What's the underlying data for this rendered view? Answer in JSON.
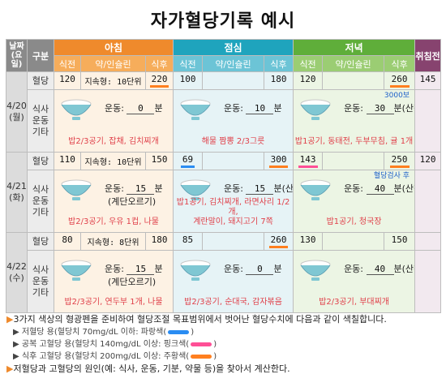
{
  "title": "자가혈당기록 예시",
  "header": {
    "date_label": "날짜\n(요일)",
    "category_label": "구분",
    "breakfast": "아침",
    "lunch": "점심",
    "dinner": "저녁",
    "bedtime": "취침전",
    "before_meal": "식전",
    "medication": "약/인슐린",
    "after_meal": "식후"
  },
  "row_labels": {
    "glucose": "혈당",
    "meal": "식사\n운동\n기타"
  },
  "exercise_label": "운동:",
  "minute_label": "분",
  "days": [
    {
      "date": "4/20\n(월)",
      "glucose": {
        "breakfast": {
          "before": "120",
          "med": "지속형: 10단위",
          "after": "220",
          "after_mark": "orange"
        },
        "lunch": {
          "before": "100",
          "med": "",
          "after": "180"
        },
        "dinner": {
          "before": "120",
          "med": "",
          "after": "260",
          "after_mark": "orange"
        },
        "bedtime": "145"
      },
      "meals": {
        "breakfast": {
          "exercise": "0",
          "unit": "분",
          "note": "",
          "food": "밥2/3공기, 잡채, 김치찌개",
          "sub": ""
        },
        "lunch": {
          "exercise": "10",
          "unit": "분",
          "note": "",
          "food": "해물 짬뽕 2/3그릇",
          "sub": ""
        },
        "dinner": {
          "exercise": "30",
          "unit": "분(산책)",
          "note": "3000보",
          "food": "밥1공기, 동태전, 두부무침, 귤 1개",
          "sub": ""
        }
      }
    },
    {
      "date": "4/21\n(화)",
      "glucose": {
        "breakfast": {
          "before": "110",
          "med": "지속형: 10단위",
          "after": "150"
        },
        "lunch": {
          "before": "69",
          "before_mark": "blue",
          "med": "",
          "after": "300",
          "after_mark": "orange"
        },
        "dinner": {
          "before": "143",
          "before_mark": "pink",
          "med": "",
          "after": "250",
          "after_mark": "orange"
        },
        "bedtime": "120"
      },
      "meals": {
        "breakfast": {
          "exercise": "15",
          "unit": "분",
          "note": "",
          "food": "밥2/3공기, 우유 1컵, 나물",
          "sub": "(계단오르기)"
        },
        "lunch": {
          "exercise": "15",
          "unit": "분(산책)",
          "note": "",
          "food": "밥1공기, 김치찌개, 라면사리 1/2개,\n계란말이, 돼지고기 7쪽",
          "sub": ""
        },
        "dinner": {
          "exercise": "40",
          "unit": "분(산책)",
          "note": "혈당검사 후",
          "food": "밥1공기, 청국장",
          "sub": ""
        }
      }
    },
    {
      "date": "4/22\n(수)",
      "glucose": {
        "breakfast": {
          "before": "80",
          "med": "지속형: 8단위",
          "after": "180"
        },
        "lunch": {
          "before": "85",
          "med": "",
          "after": "260",
          "after_mark": "orange"
        },
        "dinner": {
          "before": "130",
          "med": "",
          "after": "150"
        },
        "bedtime": ""
      },
      "meals": {
        "breakfast": {
          "exercise": "15",
          "unit": "분",
          "note": "",
          "food": "밥2/3공기, 연두부 1개, 나물",
          "sub": "(계단오르기)"
        },
        "lunch": {
          "exercise": "0",
          "unit": "분",
          "note": "",
          "food": "밥2/3공기, 순대국, 감자볶음",
          "sub": ""
        },
        "dinner": {
          "exercise": "40",
          "unit": "분(산책)",
          "note": "",
          "food": "밥2/3공기, 부대찌개",
          "sub": ""
        }
      }
    }
  ],
  "legend": {
    "intro": "3가지 색상의 형광펜을 준비하여 혈당조절 목표범위에서 벗어난 혈당수치에 다음과 같이 색칠합니다.",
    "items": [
      {
        "text": "저혈당 용(혈당치 70mg/dL 이하: 파랑색(",
        "close": ")",
        "color": "#2a8cf2"
      },
      {
        "text": "공복 고혈당 용(혈당치 140mg/dL 이상: 핑크색(",
        "close": ")",
        "color": "#ff4f96"
      },
      {
        "text": "식후 고혈당 용(혈당치 200mg/dL 이상: 주황색(",
        "close": ")",
        "color": "#ff7f1f"
      }
    ],
    "footer": "저혈당과 고혈당의 원인(예: 식사, 운동, 기분, 약물 등)을 찾아서 계산한다."
  },
  "colors": {
    "breakfast": "#ef8a2c",
    "lunch": "#1fa4bd",
    "dinner": "#5fae3a",
    "bedtime": "#87436f"
  }
}
